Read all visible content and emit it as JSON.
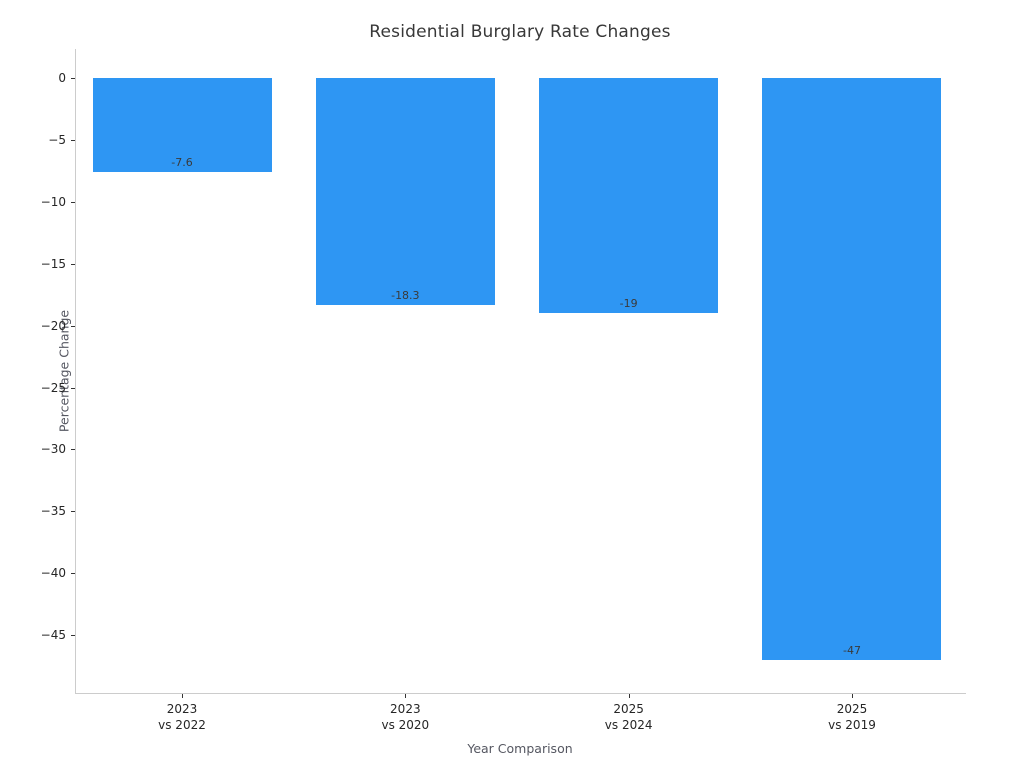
{
  "chart_data": {
    "type": "bar",
    "title": "Residential Burglary Rate Changes",
    "xlabel": "Year Comparison",
    "ylabel": "Percentage Change",
    "categories": [
      "2023\nvs 2022",
      "2023\nvs 2020",
      "2025\nvs 2024",
      "2025\nvs 2019"
    ],
    "values": [
      -7.6,
      -18.3,
      -19,
      -47
    ],
    "bar_labels": [
      "-7.6",
      "-18.3",
      "-19",
      "-47"
    ],
    "yticks": [
      0,
      -5,
      -10,
      -15,
      -20,
      -25,
      -30,
      -35,
      -40,
      -45
    ],
    "ylim": [
      -49.7,
      2.3
    ],
    "bar_color": "#2E96F3",
    "label_color": "#3a3a3a",
    "spine_color": "#cccccc",
    "grid": false,
    "legend": null,
    "background": "#ffffff"
  }
}
